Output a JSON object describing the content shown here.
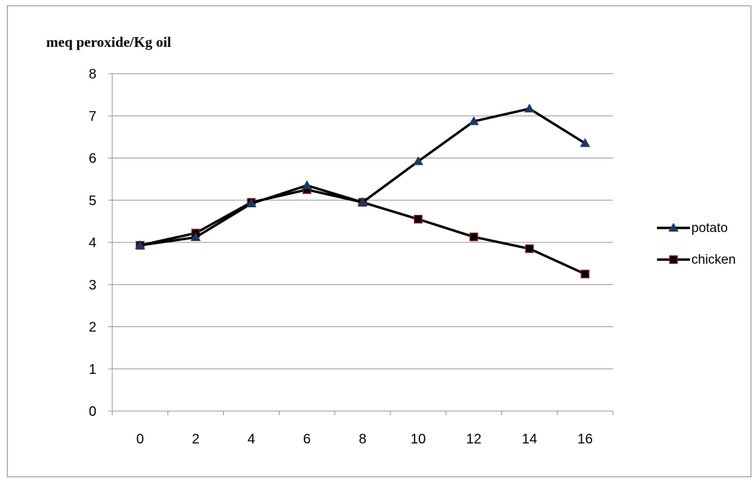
{
  "chart_data": {
    "type": "line",
    "ylabel": "meq peroxide/Kg oil",
    "xlabel": "",
    "categories": [
      "0",
      "2",
      "4",
      "6",
      "8",
      "10",
      "12",
      "14",
      "16"
    ],
    "ylim": [
      0,
      8
    ],
    "yticks": [
      "0",
      "1",
      "2",
      "3",
      "4",
      "5",
      "6",
      "7",
      "8"
    ],
    "grid": "horizontal",
    "legend_position": "right",
    "series": [
      {
        "name": "potato",
        "marker": "triangle",
        "color": "#000000",
        "marker_color": "#1f3864",
        "values": [
          3.93,
          4.12,
          4.92,
          5.35,
          4.95,
          5.92,
          6.87,
          7.17,
          6.35
        ]
      },
      {
        "name": "chicken",
        "marker": "square",
        "color": "#000000",
        "marker_color": "#000000",
        "marker_edge": "#8b1a1a",
        "values": [
          3.93,
          4.22,
          4.95,
          5.25,
          4.95,
          4.55,
          4.13,
          3.85,
          3.25
        ]
      }
    ]
  }
}
